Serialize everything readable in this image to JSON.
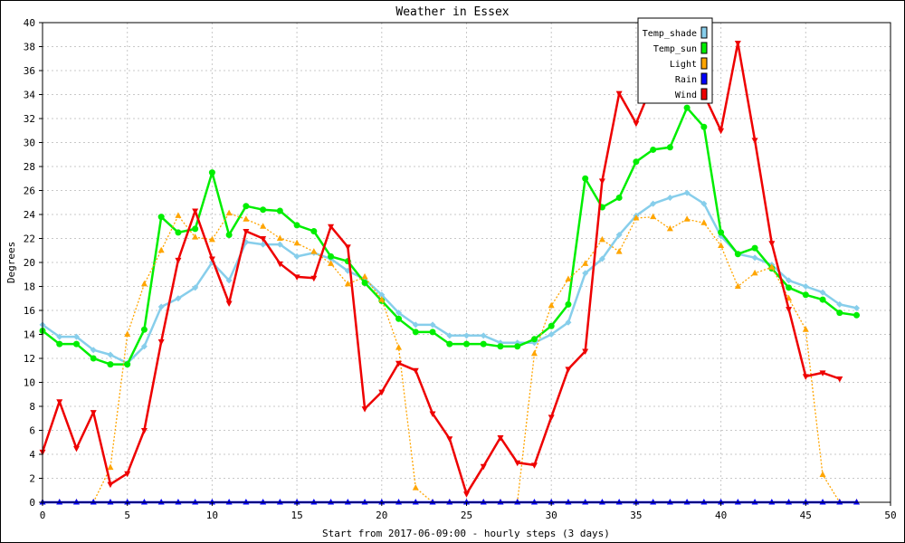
{
  "chart_data": {
    "type": "line",
    "title": "Weather in Essex",
    "xlabel": "Start from 2017-06-09:00 - hourly steps (3 days)",
    "ylabel": "Degrees",
    "xlim": [
      0,
      50
    ],
    "ylim": [
      0,
      40
    ],
    "x_ticks": [
      0,
      5,
      10,
      15,
      20,
      25,
      30,
      35,
      40,
      45,
      50
    ],
    "y_ticks": [
      0,
      2,
      4,
      6,
      8,
      10,
      12,
      14,
      16,
      18,
      20,
      22,
      24,
      26,
      28,
      30,
      32,
      34,
      36,
      38,
      40
    ],
    "grid": true,
    "legend_position": "top-right",
    "x": [
      0,
      1,
      2,
      3,
      4,
      5,
      6,
      7,
      8,
      9,
      10,
      11,
      12,
      13,
      14,
      15,
      16,
      17,
      18,
      19,
      20,
      21,
      22,
      23,
      24,
      25,
      26,
      27,
      28,
      29,
      30,
      31,
      32,
      33,
      34,
      35,
      36,
      37,
      38,
      39,
      40,
      41,
      42,
      43,
      44,
      45,
      46,
      47,
      48
    ],
    "series": [
      {
        "name": "Temp_shade",
        "color": "#87ceeb",
        "marker": "diamond",
        "values": [
          14.8,
          13.8,
          13.8,
          12.7,
          12.3,
          11.6,
          13.0,
          16.3,
          17.0,
          17.9,
          20.0,
          18.5,
          21.7,
          21.5,
          21.5,
          20.5,
          20.8,
          20.3,
          19.3,
          18.6,
          17.3,
          15.8,
          14.8,
          14.8,
          13.9,
          13.9,
          13.9,
          13.3,
          13.3,
          13.3,
          14.0,
          15.0,
          19.1,
          20.3,
          22.3,
          23.9,
          24.9,
          25.4,
          25.8,
          24.9,
          22.2,
          20.7,
          20.4,
          19.8,
          18.5,
          18.0,
          17.5,
          16.5,
          16.2
        ]
      },
      {
        "name": "Temp_sun",
        "color": "#00ee00",
        "marker": "circle",
        "values": [
          14.3,
          13.2,
          13.2,
          12.0,
          11.5,
          11.5,
          14.4,
          23.8,
          22.5,
          22.8,
          27.5,
          22.3,
          24.7,
          24.4,
          24.3,
          23.1,
          22.6,
          20.5,
          20.1,
          18.3,
          16.8,
          15.3,
          14.2,
          14.2,
          13.2,
          13.2,
          13.2,
          13.0,
          13.0,
          13.6,
          14.7,
          16.5,
          27.0,
          24.6,
          25.4,
          28.4,
          29.4,
          29.6,
          32.9,
          31.3,
          22.5,
          20.7,
          21.2,
          19.5,
          17.9,
          17.3,
          16.9,
          15.8,
          15.6
        ]
      },
      {
        "name": "Light",
        "color": "#ffa500",
        "marker": "triangle-up",
        "values": [
          0,
          0,
          0,
          0,
          2.9,
          14.0,
          18.2,
          21.0,
          23.9,
          22.1,
          21.9,
          24.1,
          23.6,
          23.0,
          22.0,
          21.6,
          20.9,
          19.9,
          18.2,
          18.8,
          16.9,
          12.9,
          1.2,
          0,
          0,
          0,
          0,
          0,
          0,
          12.4,
          16.4,
          18.6,
          19.9,
          21.9,
          20.9,
          23.7,
          23.8,
          22.8,
          23.6,
          23.3,
          21.4,
          18.0,
          19.1,
          19.6,
          17.0,
          14.4,
          2.3,
          0,
          0
        ]
      },
      {
        "name": "Rain",
        "color": "#0000ff",
        "marker": "triangle-up",
        "values": [
          0,
          0,
          0,
          0,
          0,
          0,
          0,
          0,
          0,
          0,
          0,
          0,
          0,
          0,
          0,
          0,
          0,
          0,
          0,
          0,
          0,
          0,
          0,
          0,
          0,
          0,
          0,
          0,
          0,
          0,
          0,
          0,
          0,
          0,
          0,
          0,
          0,
          0,
          0,
          0,
          0,
          0,
          0,
          0,
          0,
          0,
          0,
          0,
          0
        ]
      },
      {
        "name": "Wind",
        "color": "#ee0000",
        "marker": "triangle-down",
        "values": [
          4.2,
          8.4,
          4.5,
          7.5,
          1.5,
          2.4,
          6.0,
          13.4,
          20.2,
          24.3,
          20.3,
          16.6,
          22.6,
          22.0,
          19.9,
          18.8,
          18.7,
          23.0,
          21.3,
          7.8,
          9.2,
          11.6,
          11.0,
          7.4,
          5.3,
          0.7,
          3.0,
          5.4,
          3.3,
          3.1,
          7.1,
          11.1,
          12.6,
          26.8,
          34.1,
          31.6,
          35.0,
          34.4,
          35.7,
          34.0,
          31.0,
          38.3,
          30.2,
          21.6,
          16.1,
          10.5,
          10.8,
          10.3,
          null
        ]
      }
    ]
  }
}
